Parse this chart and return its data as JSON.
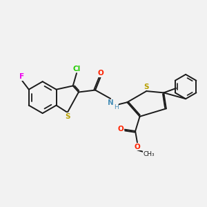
{
  "background_color": "#f2f2f2",
  "bond_color": "#1a1a1a",
  "atom_colors": {
    "S": "#b8a000",
    "N": "#4a90b8",
    "O": "#ff2200",
    "F": "#ee00ee",
    "Cl": "#22cc00",
    "H": "#4a90b8"
  },
  "figsize": [
    3.0,
    3.0
  ],
  "dpi": 100
}
